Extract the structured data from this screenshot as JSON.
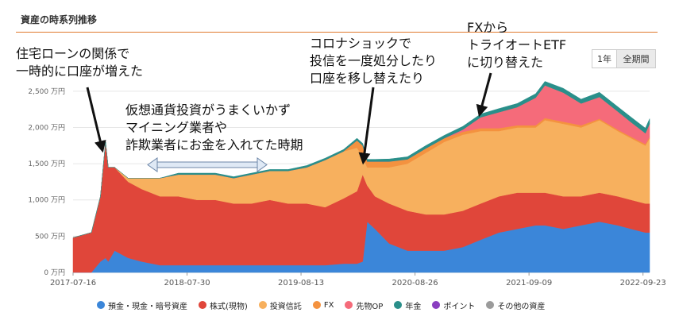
{
  "header": {
    "title": "資産の時系列推移"
  },
  "range_buttons": {
    "one_year": "1年",
    "all": "全期間"
  },
  "annotations": {
    "housing_line1": "住宅ローンの関係で",
    "housing_line2": "一時的に口座が増えた",
    "crypto_line1": "仮想通貨投資がうまくいかず",
    "crypto_line2": "マイニング業者や",
    "crypto_line3": "詐欺業者にお金を入れてた時期",
    "corona_line1": "コロナショックで",
    "corona_line2": "投信を一度処分したり",
    "corona_line3": "口座を移し替えたり",
    "fx_line1": "FXから",
    "fx_line2": "トライオートETF",
    "fx_line3": "に切り替えた"
  },
  "legend": [
    {
      "label": "預金・現金・暗号資産",
      "color": "#3b86d9"
    },
    {
      "label": "株式(現物)",
      "color": "#e0463a"
    },
    {
      "label": "投資信託",
      "color": "#f7b05e"
    },
    {
      "label": "FX",
      "color": "#f4923f"
    },
    {
      "label": "先物OP",
      "color": "#f56b7a"
    },
    {
      "label": "年金",
      "color": "#2a8f8a"
    },
    {
      "label": "ポイント",
      "color": "#8a3fc0"
    },
    {
      "label": "その他の資産",
      "color": "#9b9b9b"
    }
  ],
  "chart_data": {
    "type": "area",
    "stacked": true,
    "ylim": [
      0,
      2750
    ],
    "y_ticks": [
      0,
      500,
      1000,
      1500,
      2000,
      2500
    ],
    "y_tick_labels": [
      "0 万円",
      "500 万円",
      "1,000 万円",
      "1,500 万円",
      "2,000 万円",
      "2,500 万円"
    ],
    "x_ticks": [
      "2017-07-16",
      "2018-07-30",
      "2019-08-13",
      "2020-08-26",
      "2021-09-09",
      "2022-09-23"
    ],
    "x_range": [
      "2017-07-16",
      "2022-10-15"
    ],
    "dates": [
      "2017-07-16",
      "2017-09-15",
      "2017-10-15",
      "2017-11-01",
      "2017-11-10",
      "2017-12-01",
      "2018-01-15",
      "2018-03-01",
      "2018-05-01",
      "2018-07-01",
      "2018-09-01",
      "2018-11-01",
      "2019-01-01",
      "2019-03-01",
      "2019-05-01",
      "2019-07-01",
      "2019-09-01",
      "2019-11-01",
      "2020-01-01",
      "2020-02-15",
      "2020-03-05",
      "2020-03-20",
      "2020-04-15",
      "2020-06-01",
      "2020-08-01",
      "2020-10-01",
      "2020-12-01",
      "2021-02-01",
      "2021-04-01",
      "2021-06-01",
      "2021-08-01",
      "2021-10-01",
      "2021-11-01",
      "2022-01-01",
      "2022-03-01",
      "2022-05-01",
      "2022-07-01",
      "2022-08-15",
      "2022-10-01",
      "2022-10-15"
    ],
    "series": [
      {
        "name": "預金・現金・暗号資産",
        "color": "#3b86d9",
        "values": [
          0,
          0,
          150,
          200,
          150,
          300,
          200,
          150,
          100,
          100,
          100,
          100,
          100,
          100,
          100,
          100,
          100,
          100,
          120,
          120,
          150,
          700,
          600,
          400,
          300,
          300,
          300,
          350,
          450,
          550,
          600,
          650,
          650,
          600,
          650,
          700,
          650,
          600,
          550,
          550
        ]
      },
      {
        "name": "株式(現物)",
        "color": "#e0463a",
        "values": [
          480,
          550,
          900,
          1600,
          1300,
          1150,
          1050,
          1000,
          950,
          950,
          900,
          900,
          850,
          850,
          900,
          850,
          850,
          800,
          900,
          1000,
          1200,
          500,
          450,
          550,
          550,
          500,
          500,
          500,
          500,
          500,
          500,
          450,
          450,
          450,
          400,
          400,
          400,
          400,
          400,
          400
        ]
      },
      {
        "name": "投資信託",
        "color": "#f7b05e",
        "values": [
          0,
          0,
          0,
          0,
          0,
          0,
          50,
          150,
          250,
          300,
          350,
          350,
          350,
          400,
          400,
          450,
          500,
          650,
          650,
          600,
          250,
          250,
          400,
          500,
          650,
          850,
          1000,
          1050,
          1000,
          900,
          900,
          900,
          1000,
          1000,
          950,
          1000,
          900,
          850,
          800,
          900
        ]
      },
      {
        "name": "FX",
        "color": "#f4923f",
        "values": [
          0,
          0,
          0,
          0,
          0,
          0,
          0,
          0,
          0,
          0,
          0,
          0,
          0,
          0,
          0,
          0,
          0,
          0,
          0,
          100,
          150,
          80,
          80,
          80,
          60,
          60,
          50,
          40,
          40,
          40,
          30,
          30,
          30,
          30,
          30,
          20,
          20,
          20,
          20,
          20
        ]
      },
      {
        "name": "先物OP",
        "color": "#f56b7a",
        "values": [
          0,
          0,
          0,
          0,
          0,
          0,
          0,
          0,
          0,
          0,
          0,
          0,
          0,
          0,
          0,
          0,
          0,
          0,
          0,
          0,
          0,
          0,
          0,
          0,
          0,
          0,
          0,
          30,
          150,
          220,
          250,
          380,
          450,
          400,
          300,
          300,
          250,
          200,
          150,
          180
        ]
      },
      {
        "name": "年金",
        "color": "#2a8f8a",
        "values": [
          0,
          0,
          0,
          0,
          0,
          0,
          0,
          0,
          0,
          20,
          20,
          20,
          20,
          20,
          20,
          20,
          25,
          25,
          25,
          30,
          30,
          30,
          30,
          35,
          35,
          40,
          40,
          45,
          45,
          50,
          50,
          55,
          55,
          60,
          60,
          65,
          65,
          70,
          70,
          70
        ]
      },
      {
        "name": "ポイント",
        "color": "#8a3fc0",
        "values": [
          0,
          0,
          0,
          0,
          0,
          0,
          0,
          0,
          0,
          0,
          0,
          0,
          0,
          0,
          0,
          0,
          0,
          0,
          0,
          0,
          0,
          0,
          0,
          0,
          0,
          0,
          0,
          0,
          0,
          0,
          0,
          0,
          0,
          0,
          0,
          0,
          0,
          0,
          0,
          0
        ]
      },
      {
        "name": "その他の資産",
        "color": "#9b9b9b",
        "values": [
          0,
          0,
          0,
          0,
          0,
          0,
          0,
          0,
          0,
          0,
          0,
          0,
          0,
          0,
          0,
          0,
          0,
          0,
          0,
          0,
          0,
          0,
          0,
          0,
          0,
          0,
          0,
          0,
          0,
          0,
          0,
          0,
          0,
          0,
          0,
          0,
          0,
          0,
          0,
          0
        ]
      }
    ]
  }
}
